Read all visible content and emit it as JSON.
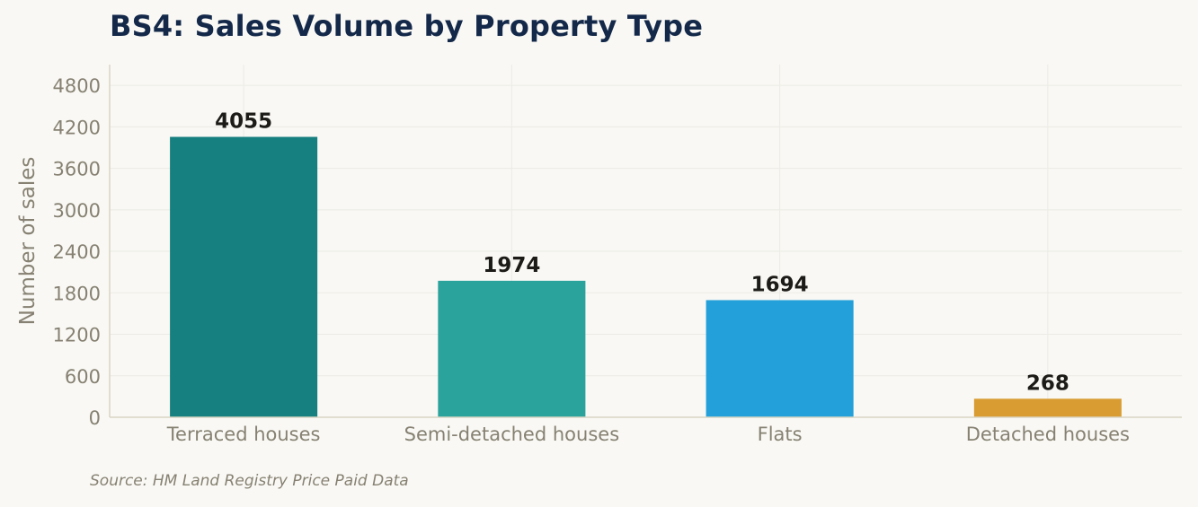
{
  "chart_data": {
    "type": "bar",
    "title": "BS4: Sales Volume by Property Type",
    "xlabel": "",
    "ylabel": "Number of sales",
    "categories": [
      "Terraced houses",
      "Semi-detached houses",
      "Flats",
      "Detached houses"
    ],
    "values": [
      4055,
      1974,
      1694,
      268
    ],
    "data_labels": [
      "4055",
      "1974",
      "1694",
      "268"
    ],
    "colors": [
      "#167f7f",
      "#2aa39c",
      "#239fd9",
      "#d89c33"
    ],
    "ylim": [
      0,
      5100
    ],
    "yticks": [
      0,
      600,
      1200,
      1800,
      2400,
      3000,
      3600,
      4200,
      4800
    ],
    "grid": true,
    "legend": "none",
    "source": "Source: HM Land Registry Price Paid Data"
  }
}
